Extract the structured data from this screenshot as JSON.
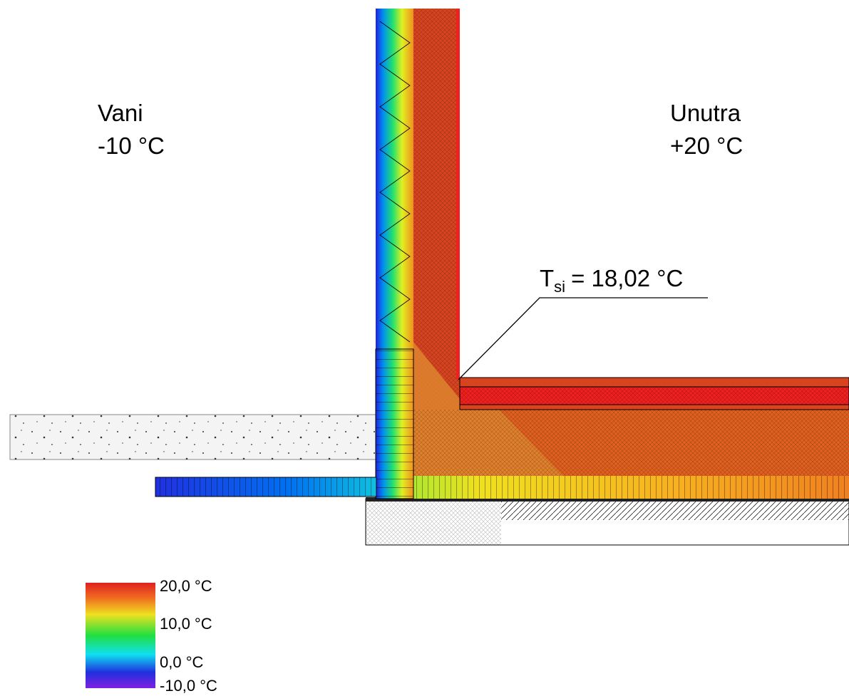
{
  "outside": {
    "title": "Vani",
    "temperature": "-10 °C"
  },
  "inside": {
    "title": "Unutra",
    "temperature": "+20 °C"
  },
  "annotation": {
    "symbol": "T",
    "subscript": "si",
    "text": "= 18,02 °C"
  },
  "legend": {
    "labels": [
      "20,0 °C",
      "10,0 °C",
      "0,0 °C",
      "-10,0 °C"
    ]
  }
}
